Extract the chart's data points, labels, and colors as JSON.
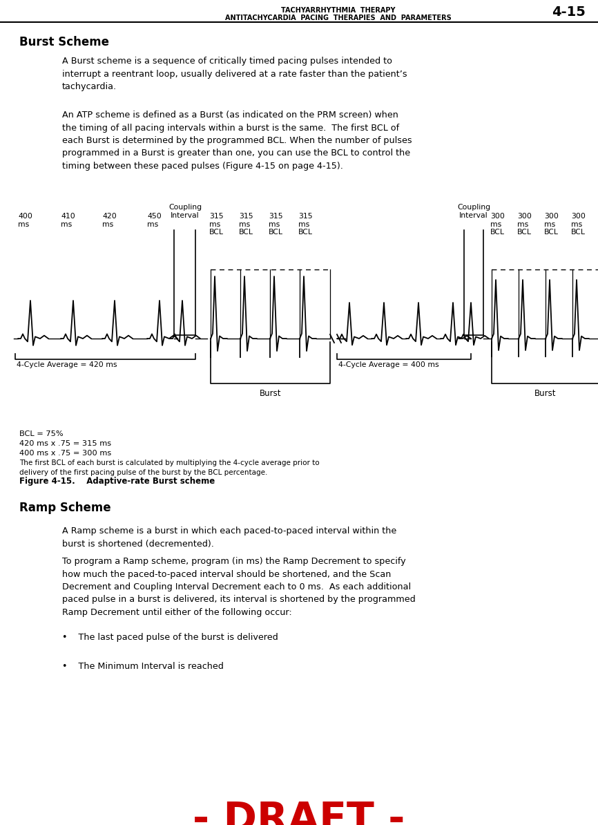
{
  "page_title_right": "TACHYARRHYTHMIA  THERAPY",
  "page_title_right2": "ANTITACHYCARDIA  PACING  THERAPIES  AND  PARAMETERS",
  "page_number": "4-15",
  "section1_title": "Burst Scheme",
  "section1_para1": "A Burst scheme is a sequence of critically timed pacing pulses intended to\ninterrupt a reentrant loop, usually delivered at a rate faster than the patient’s\ntachycardia.",
  "section1_para2": "An ATP scheme is defined as a Burst (as indicated on the PRM screen) when\nthe timing of all pacing intervals within a burst is the same.  The first BCL of\neach Burst is determined by the programmed BCL. When the number of pulses\nprogrammed in a Burst is greater than one, you can use the BCL to control the\ntiming between these paced pulses (Figure 4-15 on page 4-15).",
  "bcl_note_line1": "BCL = 75%",
  "bcl_note_line2": "420 ms x .75 = 315 ms",
  "bcl_note_line3": "400 ms x .75 = 300 ms",
  "caption_small": "The first BCL of each burst is calculated by multiplying the 4-cycle average prior to\ndelivery of the first pacing pulse of the burst by the BCL percentage.",
  "figure_caption": "Figure 4-15.    Adaptive-rate Burst scheme",
  "section2_title": "Ramp Scheme",
  "section2_para1": "A Ramp scheme is a burst in which each paced-to-paced interval within the\nburst is shortened (decremented).",
  "section2_para2": "To program a Ramp scheme, program (in ms) the Ramp Decrement to specify\nhow much the paced-to-paced interval should be shortened, and the Scan\nDecrement and Coupling Interval Decrement each to 0 ms.  As each additional\npaced pulse in a burst is delivered, its interval is shortened by the programmed\nRamp Decrement until either of the following occur:",
  "bullet1": "•    The last paced pulse of the burst is delivered",
  "bullet2": "•    The Minimum Interval is reached",
  "draft_text": "- DRAFT -",
  "bg_color": "#ffffff",
  "text_color": "#000000",
  "draft_color": "#cc0000",
  "left_beat_labels": [
    "400\nms",
    "410\nms",
    "420\nms",
    "450\nms"
  ],
  "burst1_labels": [
    "315\nms\nBCL",
    "315\nms\nBCL",
    "315\nms\nBCL",
    "315\nms\nBCL"
  ],
  "burst2_labels": [
    "300\nms\nBCL",
    "300\nms\nBCL",
    "300\nms\nBCL",
    "300\nms\nBCL"
  ],
  "coupling_interval_label": "Coupling\nInterval",
  "cycle_avg1_label": "4-Cycle Average = 420 ms",
  "cycle_avg2_label": "4-Cycle Average = 400 ms",
  "burst_label": "Burst"
}
